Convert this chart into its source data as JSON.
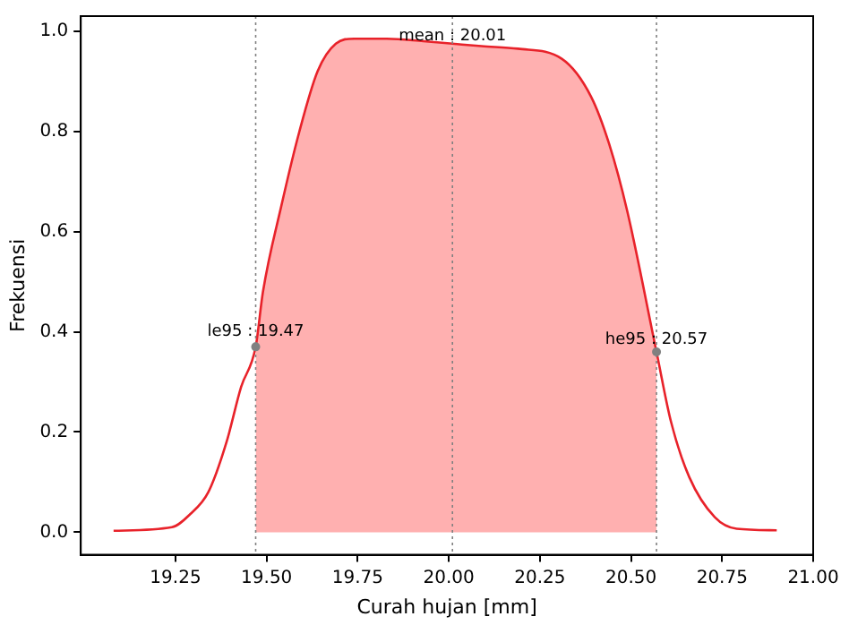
{
  "chart_data": {
    "type": "line",
    "xlabel": "Curah hujan [mm]",
    "ylabel": "Frekuensi",
    "xlim": [
      18.99,
      21.0
    ],
    "ylim": [
      -0.045,
      1.03
    ],
    "xticks": [
      {
        "value": 19.25,
        "label": "19.25"
      },
      {
        "value": 19.5,
        "label": "19.50"
      },
      {
        "value": 19.75,
        "label": "19.75"
      },
      {
        "value": 20.0,
        "label": "20.00"
      },
      {
        "value": 20.25,
        "label": "20.25"
      },
      {
        "value": 20.5,
        "label": "20.50"
      },
      {
        "value": 20.75,
        "label": "20.75"
      },
      {
        "value": 21.0,
        "label": "21.00"
      }
    ],
    "yticks": [
      {
        "value": 0,
        "label": "0.0"
      },
      {
        "value": 0.2,
        "label": "0.2"
      },
      {
        "value": 0.4,
        "label": "0.4"
      },
      {
        "value": 0.6,
        "label": "0.6"
      },
      {
        "value": 0.8,
        "label": "0.8"
      },
      {
        "value": 1.0,
        "label": "1.0"
      }
    ],
    "grid": false,
    "legend": false,
    "marker": "none",
    "series": [
      {
        "type": "area",
        "color": "#ffb0b0",
        "x": [
          19.47,
          19.49,
          19.54,
          19.59,
          19.64,
          19.69,
          19.74,
          19.83,
          19.93,
          20.01,
          20.09,
          20.19,
          20.31,
          20.39,
          20.44,
          20.49,
          20.57
        ],
        "values": [
          0.37,
          0.48,
          0.65,
          0.8,
          0.92,
          0.975,
          0.985,
          0.985,
          0.98,
          0.975,
          0.97,
          0.965,
          0.945,
          0.87,
          0.775,
          0.64,
          0.36
        ]
      },
      {
        "color": "#e8222a",
        "x": [
          19.08,
          19.24,
          19.29,
          19.34,
          19.39,
          19.43,
          19.47,
          19.49,
          19.54,
          19.59,
          19.64,
          19.69,
          19.74,
          19.83,
          19.93,
          20.01,
          20.09,
          20.19,
          20.31,
          20.39,
          20.44,
          20.49,
          20.57,
          20.61,
          20.66,
          20.73,
          20.79,
          20.9
        ],
        "values": [
          0.003,
          0.01,
          0.036,
          0.08,
          0.18,
          0.29,
          0.37,
          0.48,
          0.65,
          0.8,
          0.92,
          0.975,
          0.985,
          0.985,
          0.98,
          0.975,
          0.97,
          0.965,
          0.945,
          0.87,
          0.775,
          0.64,
          0.36,
          0.22,
          0.11,
          0.03,
          0.007,
          0.004
        ]
      },
      {
        "type": "scatter",
        "color": "#808080",
        "marker": "circle",
        "x": [
          19.47,
          20.57
        ],
        "values": [
          0.37,
          0.36
        ]
      }
    ],
    "ref_lines": [
      {
        "axis": "x",
        "value": 19.47,
        "color": "#808080",
        "line_style": "dotted"
      },
      {
        "axis": "x",
        "value": 20.01,
        "color": "#808080",
        "line_style": "dotted"
      },
      {
        "axis": "x",
        "value": 20.57,
        "color": "#808080",
        "line_style": "dotted"
      }
    ],
    "annotations": [
      {
        "text": "le95 : 19.47",
        "x": 19.47,
        "y": 0.4
      },
      {
        "text": "mean : 20.01",
        "x": 20.01,
        "y": 0.99
      },
      {
        "text": "he95 : 20.57",
        "x": 20.57,
        "y": 0.385
      }
    ]
  }
}
